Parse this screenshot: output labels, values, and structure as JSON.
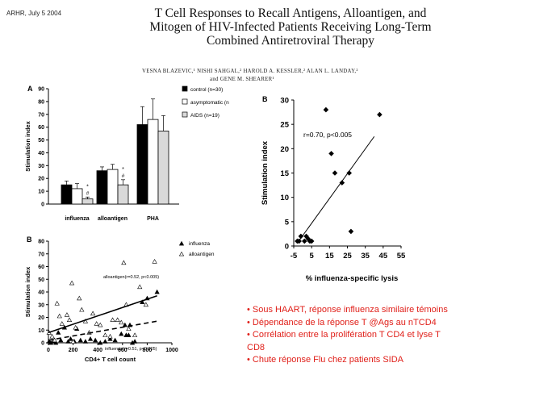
{
  "slide": {
    "label": "ARHR, July 5 2004",
    "title_lines": [
      "T Cell Responses to Recall Antigens, Alloantigen, and",
      "Mitogen of HIV-Infected Patients Receiving Long-Term",
      "Combined Antiretroviral Therapy"
    ],
    "authors_lines": [
      "VESNA BLAZEVIC,¹ NISHI SAHGAL,² HAROLD A. KESSLER,² ALAN L. LANDAY,²",
      "and GENE M. SHEARER¹"
    ],
    "bullets": [
      "• Sous HAART, réponse influenza similaire témoins",
      "• Dépendance de la réponse T @Ags au nTCD4",
      "• Corrélation entre la prolifération T CD4 et lyse T",
      "CD8",
      "• Chute réponse Flu chez patients SIDA"
    ]
  },
  "chart_data": [
    {
      "panel": "A",
      "type": "bar",
      "categories": [
        "influenza",
        "alloantigen",
        "PHA"
      ],
      "series": [
        {
          "name": "control (n=30)",
          "values": [
            15,
            26,
            62
          ],
          "errors": [
            3,
            3,
            14
          ],
          "color": "#000000"
        },
        {
          "name": "asymptomatic (n",
          "values": [
            12,
            27,
            66
          ],
          "errors": [
            4,
            4,
            16
          ],
          "color": "#ffffff"
        },
        {
          "name": "AIDS (n=19)",
          "values": [
            4,
            15,
            57
          ],
          "errors": [
            1.5,
            4,
            12
          ],
          "color": "#d9d9d9"
        }
      ],
      "markers": [
        "*",
        "#"
      ],
      "ylabel": "Stimulation index",
      "ylim": [
        0,
        90
      ],
      "yticks": [
        0,
        10,
        20,
        30,
        40,
        50,
        60,
        70,
        80,
        90
      ],
      "legend": "top-right"
    },
    {
      "panel": "B",
      "type": "scatter",
      "series": [
        {
          "name": "influenza",
          "marker": "filled-triangle",
          "points": [
            [
              5,
              1
            ],
            [
              20,
              0
            ],
            [
              40,
              1
            ],
            [
              60,
              0
            ],
            [
              80,
              8
            ],
            [
              100,
              2
            ],
            [
              130,
              12
            ],
            [
              160,
              1
            ],
            [
              180,
              3
            ],
            [
              210,
              1
            ],
            [
              230,
              11
            ],
            [
              260,
              2
            ],
            [
              300,
              1
            ],
            [
              340,
              3
            ],
            [
              380,
              2
            ],
            [
              420,
              0
            ],
            [
              460,
              1
            ],
            [
              500,
              3
            ],
            [
              540,
              2
            ],
            [
              590,
              7
            ],
            [
              620,
              14
            ],
            [
              630,
              6
            ],
            [
              650,
              6
            ],
            [
              660,
              14
            ],
            [
              680,
              0
            ],
            [
              700,
              1
            ],
            [
              760,
              32
            ],
            [
              800,
              35
            ],
            [
              880,
              40
            ]
          ]
        },
        {
          "name": "alloantigen",
          "marker": "open-triangle",
          "points": [
            [
              5,
              8
            ],
            [
              30,
              5
            ],
            [
              50,
              2
            ],
            [
              70,
              31
            ],
            [
              90,
              21
            ],
            [
              110,
              15
            ],
            [
              150,
              22
            ],
            [
              170,
              18
            ],
            [
              190,
              47
            ],
            [
              200,
              1
            ],
            [
              220,
              12
            ],
            [
              250,
              35
            ],
            [
              270,
              26
            ],
            [
              300,
              17
            ],
            [
              330,
              8
            ],
            [
              360,
              23
            ],
            [
              390,
              15
            ],
            [
              420,
              14
            ],
            [
              460,
              6
            ],
            [
              500,
              5
            ],
            [
              520,
              18
            ],
            [
              560,
              18
            ],
            [
              590,
              16
            ],
            [
              610,
              63
            ],
            [
              630,
              30
            ],
            [
              650,
              11
            ],
            [
              700,
              6
            ],
            [
              740,
              44
            ],
            [
              790,
              30
            ],
            [
              860,
              64
            ]
          ]
        }
      ],
      "annotations": [
        "alloantigen(r=0.52, p<0.005)",
        "influenza(r=0.51, p<0.005)"
      ],
      "xlabel": "CD4+ T cell count",
      "ylabel": "Stimulation index",
      "xlim": [
        0,
        1000
      ],
      "ylim": [
        0,
        80
      ],
      "xticks": [
        0,
        200,
        400,
        600,
        800,
        1000
      ],
      "yticks": [
        0,
        10,
        20,
        30,
        40,
        50,
        60,
        70,
        80
      ],
      "legend": "top-right"
    },
    {
      "panel": "B",
      "type": "scatter",
      "series": [
        {
          "name": "",
          "marker": "diamond",
          "points": [
            [
              -3,
              1
            ],
            [
              -2,
              1
            ],
            [
              -1,
              2
            ],
            [
              1,
              1
            ],
            [
              2,
              2
            ],
            [
              3,
              1.5
            ],
            [
              4,
              1
            ],
            [
              5,
              1
            ],
            [
              13,
              28
            ],
            [
              16,
              19
            ],
            [
              18,
              15
            ],
            [
              22,
              13
            ],
            [
              26,
              15
            ],
            [
              27,
              3
            ],
            [
              43,
              27
            ]
          ]
        }
      ],
      "trendline": {
        "x": [
          -3,
          40
        ],
        "y": [
          0.6,
          22.5
        ]
      },
      "annotation": "r=0.70, p<0.005",
      "xlabel": "% influenza-specific lysis",
      "ylabel": "Stimulation index",
      "xlim": [
        -5,
        55
      ],
      "ylim": [
        0,
        30
      ],
      "xticks": [
        -5,
        5,
        15,
        25,
        35,
        45,
        55
      ],
      "yticks": [
        0,
        5,
        10,
        15,
        20,
        25,
        30
      ]
    }
  ]
}
